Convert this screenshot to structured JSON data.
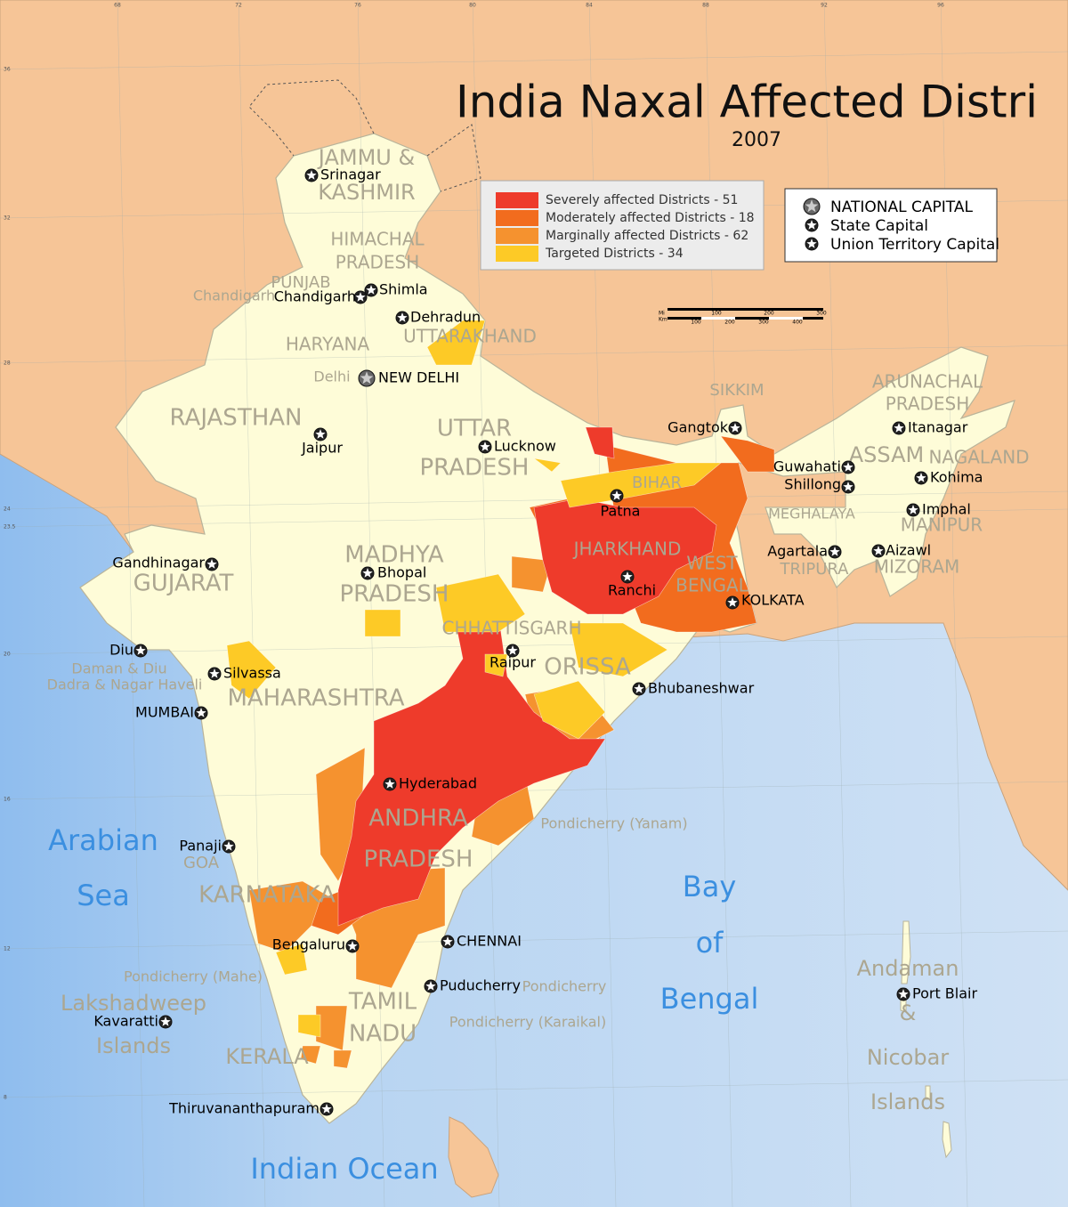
{
  "title": "India Naxal Affected Distri",
  "subtitle": "2007",
  "legend": [
    {
      "label": "Severely affected Districts - 51",
      "color": "#ee3b2b"
    },
    {
      "label": "Moderately affected Districts - 18",
      "color": "#f26c1e"
    },
    {
      "label": "Marginally affected Districts - 62",
      "color": "#f5922f"
    },
    {
      "label": "Targeted Districts - 34",
      "color": "#fdca26"
    }
  ],
  "capital_legend": [
    "NATIONAL CAPITAL",
    "State Capital",
    "Union Territory Capital"
  ],
  "cities": [
    "Srinagar",
    "Shimla",
    "Chandigarh",
    "Dehradun",
    "NEW DELHI",
    "Jaipur",
    "Lucknow",
    "Gangtok",
    "Itanagar",
    "Guwahati",
    "Shillong",
    "Kohima",
    "Imphal",
    "Patna",
    "Ranchi",
    "Agartala",
    "Aizawl",
    "KOLKATA",
    "Gandhinagar",
    "Bhopal",
    "Raipur",
    "Diu",
    "Silvassa",
    "Bhubaneshwar",
    "MUMBAI",
    "Hyderabad",
    "Panaji",
    "Bengaluru",
    "CHENNAI",
    "Puducherry",
    "Kavaratti",
    "Port Blair",
    "Thiruvananthapuram"
  ],
  "states": [
    [
      "JAMMU &",
      "KASHMIR"
    ],
    [
      "HIMACHAL",
      "PRADESH"
    ],
    [
      "PUNJAB"
    ],
    [
      "HARYANA"
    ],
    [
      "UTTARAKHAND"
    ],
    [
      "RAJASTHAN"
    ],
    [
      "UTTAR",
      "PRADESH"
    ],
    [
      "BIHAR"
    ],
    [
      "JHARKHAND"
    ],
    [
      "WEST",
      "BENGAL"
    ],
    [
      "SIKKIM"
    ],
    [
      "ARUNACHAL",
      "PRADESH"
    ],
    [
      "ASSAM"
    ],
    [
      "NAGALAND"
    ],
    [
      "MEGHALAYA"
    ],
    [
      "MANIPUR"
    ],
    [
      "TRIPURA"
    ],
    [
      "MIZORAM"
    ],
    [
      "GUJARAT"
    ],
    [
      "MADHYA",
      "PRADESH"
    ],
    [
      "CHHATTISGARH"
    ],
    [
      "ORISSA"
    ],
    [
      "MAHARASHTRA"
    ],
    [
      "ANDHRA",
      "PRADESH"
    ],
    [
      "GOA"
    ],
    [
      "KARNATAKA"
    ],
    [
      "TAMIL",
      "NADU"
    ],
    [
      "KERALA"
    ],
    [
      "Chandigarh"
    ],
    [
      "Delhi"
    ],
    [
      "Daman & Diu"
    ],
    [
      "Dadra & Nagar Haveli"
    ],
    [
      "Pondicherry (Yanam)"
    ],
    [
      "Pondicherry (Mahe)"
    ],
    [
      "Pondicherry"
    ],
    [
      "Pondicherry (Karaikal)"
    ],
    [
      "Lakshadweep",
      "Islands"
    ],
    [
      "Andaman",
      "&",
      "Nicobar",
      "Islands"
    ]
  ],
  "waters": [
    [
      "Arabian",
      "Sea"
    ],
    [
      "Bay",
      "of",
      "Bengal"
    ],
    [
      "Indian Ocean"
    ]
  ],
  "graticule": {
    "longitudes": [
      68,
      72,
      76,
      80,
      84,
      88,
      92,
      96
    ],
    "latitudes": [
      36,
      32,
      28,
      24,
      23.5,
      20,
      16,
      12,
      8
    ]
  },
  "scale_bar": {
    "mi_label": "Mi",
    "km_label": "Km",
    "mi_ticks": [
      100,
      200,
      300
    ],
    "km_ticks": [
      100,
      200,
      300,
      400
    ]
  }
}
